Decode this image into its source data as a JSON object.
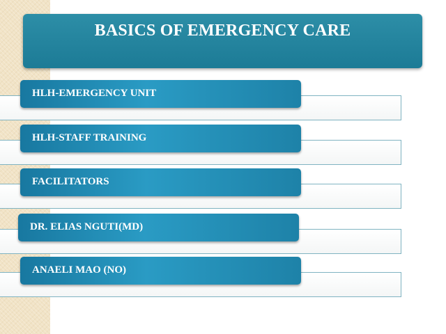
{
  "slide": {
    "title": "BASICS OF EMERGENCY CARE",
    "items": [
      {
        "label": "HLH-EMERGENCY UNIT"
      },
      {
        "label": "HLH-STAFF TRAINING"
      },
      {
        "label": "FACILITATORS"
      },
      {
        "label": "DR. ELIAS NGUTI(MD)"
      },
      {
        "label": "ANAELI MAO (NO)"
      }
    ]
  },
  "colors": {
    "accent": "#1e82a8",
    "title_bg": "#2d8ea7",
    "side_strip": "#f1e3c6",
    "row_border": "#7fb3c1"
  }
}
